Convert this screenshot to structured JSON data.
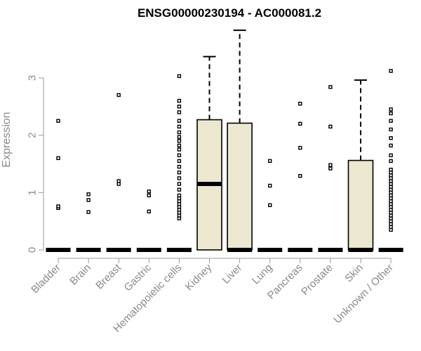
{
  "chart_data": {
    "type": "boxplot",
    "title": "ENSG00000230194 - AC000081.2",
    "ylabel": "Expression",
    "xlabel": "",
    "ylim": [
      0,
      3.88
    ],
    "yticks": [
      0,
      1,
      2,
      3
    ],
    "grid": false,
    "box_color": "#ece7cf",
    "categories": [
      "Bladder",
      "Brain",
      "Breast",
      "Gastric",
      "Hematopoietic cells",
      "Kidney",
      "Liver",
      "Lung",
      "Pancreas",
      "Prostate",
      "Skin",
      "Unknown / Other"
    ],
    "boxes": [
      {
        "category": "Bladder",
        "min": 0,
        "q1": 0,
        "median": 0,
        "q3": 0,
        "max": 0,
        "outliers": [
          0.73,
          0.76,
          1.6,
          2.25
        ]
      },
      {
        "category": "Brain",
        "min": 0,
        "q1": 0,
        "median": 0,
        "q3": 0,
        "max": 0,
        "outliers": [
          0.66,
          0.87,
          0.97
        ]
      },
      {
        "category": "Breast",
        "min": 0,
        "q1": 0,
        "median": 0,
        "q3": 0,
        "max": 0,
        "outliers": [
          1.15,
          1.2,
          2.7
        ]
      },
      {
        "category": "Gastric",
        "min": 0,
        "q1": 0,
        "median": 0,
        "q3": 0,
        "max": 0,
        "outliers": [
          0.67,
          0.95,
          1.02
        ]
      },
      {
        "category": "Hematopoietic cells",
        "min": 0,
        "q1": 0,
        "median": 0,
        "q3": 0,
        "max": 0,
        "outliers": [
          0.55,
          0.6,
          0.65,
          0.7,
          0.75,
          0.8,
          0.85,
          0.9,
          0.95,
          1.05,
          1.15,
          1.25,
          1.35,
          1.45,
          1.55,
          1.65,
          1.75,
          1.82,
          1.9,
          1.97,
          2.05,
          2.15,
          2.25,
          2.4,
          2.5,
          2.6,
          3.03
        ]
      },
      {
        "category": "Kidney",
        "min": 0,
        "q1": 0,
        "median": 1.15,
        "q3": 2.27,
        "max": 3.37,
        "outliers": []
      },
      {
        "category": "Liver",
        "min": 0,
        "q1": 0,
        "median": 0,
        "q3": 2.21,
        "max": 3.83,
        "outliers": []
      },
      {
        "category": "Lung",
        "min": 0,
        "q1": 0,
        "median": 0,
        "q3": 0,
        "max": 0,
        "outliers": [
          0.78,
          1.12,
          1.55
        ]
      },
      {
        "category": "Pancreas",
        "min": 0,
        "q1": 0,
        "median": 0,
        "q3": 0,
        "max": 0,
        "outliers": [
          1.29,
          1.78,
          2.2,
          2.55
        ]
      },
      {
        "category": "Prostate",
        "min": 0,
        "q1": 0,
        "median": 0,
        "q3": 0,
        "max": 0,
        "outliers": [
          1.42,
          1.48,
          2.15,
          2.84
        ]
      },
      {
        "category": "Skin",
        "min": 0,
        "q1": 0,
        "median": 0,
        "q3": 1.56,
        "max": 2.96,
        "outliers": []
      },
      {
        "category": "Unknown / Other",
        "min": 0,
        "q1": 0,
        "median": 0,
        "q3": 0,
        "max": 0,
        "outliers": [
          0.35,
          0.4,
          0.45,
          0.5,
          0.55,
          0.6,
          0.65,
          0.7,
          0.75,
          0.8,
          0.85,
          0.9,
          0.95,
          1.0,
          1.05,
          1.1,
          1.15,
          1.2,
          1.25,
          1.3,
          1.35,
          1.4,
          1.55,
          1.65,
          1.82,
          1.95,
          2.1,
          2.25,
          2.38,
          2.45,
          3.12
        ]
      }
    ]
  }
}
